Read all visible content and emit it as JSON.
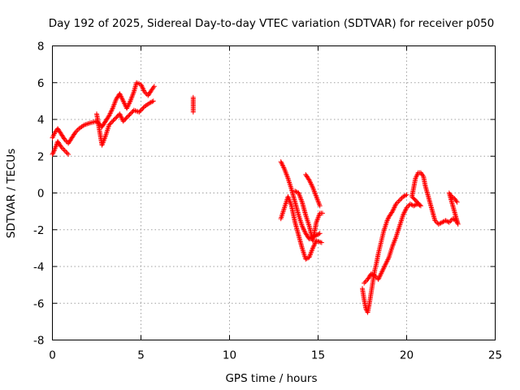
{
  "chart_data": {
    "type": "scatter",
    "title": "Day 192 of 2025, Sidereal Day-to-day VTEC variation (SDTVAR) for receiver p050",
    "xlabel": "GPS time / hours",
    "ylabel": "SDTVAR / TECUs",
    "xlim": [
      0,
      25
    ],
    "ylim": [
      -8,
      8
    ],
    "xticks": [
      0,
      5,
      10,
      15,
      20,
      25
    ],
    "yticks": [
      -8,
      -6,
      -4,
      -2,
      0,
      2,
      4,
      6,
      8
    ],
    "grid": true,
    "marker": "+",
    "marker_color": "#ff0000",
    "series": [
      {
        "name": "SDTVAR",
        "trace": [
          [
            0.0,
            3.0
          ],
          [
            0.15,
            3.3
          ],
          [
            0.3,
            3.5
          ],
          [
            0.5,
            3.2
          ],
          [
            0.7,
            2.9
          ],
          [
            0.9,
            2.7
          ],
          [
            1.1,
            3.0
          ],
          [
            1.3,
            3.3
          ],
          [
            1.5,
            3.5
          ],
          [
            1.8,
            3.7
          ],
          [
            2.1,
            3.8
          ],
          [
            2.5,
            3.9
          ],
          [
            2.8,
            3.6
          ],
          [
            3.0,
            3.9
          ],
          [
            3.2,
            4.2
          ],
          [
            3.4,
            4.6
          ],
          [
            3.6,
            5.1
          ],
          [
            3.8,
            5.4
          ],
          [
            4.0,
            5.0
          ],
          [
            4.2,
            4.6
          ],
          [
            4.4,
            5.0
          ],
          [
            4.6,
            5.5
          ],
          [
            4.75,
            6.0
          ],
          [
            5.0,
            5.9
          ],
          [
            5.2,
            5.5
          ],
          [
            5.4,
            5.3
          ],
          [
            5.6,
            5.6
          ],
          [
            5.75,
            5.8
          ],
          [
            0.0,
            2.1
          ],
          [
            0.1,
            2.3
          ],
          [
            0.3,
            2.8
          ],
          [
            0.5,
            2.5
          ],
          [
            0.7,
            2.3
          ],
          [
            0.9,
            2.1
          ],
          [
            2.5,
            4.3
          ],
          [
            2.8,
            2.6
          ],
          [
            3.0,
            3.1
          ],
          [
            3.2,
            3.7
          ],
          [
            3.5,
            4.0
          ],
          [
            3.8,
            4.3
          ],
          [
            4.0,
            3.9
          ],
          [
            4.3,
            4.2
          ],
          [
            4.6,
            4.5
          ],
          [
            4.9,
            4.4
          ],
          [
            5.2,
            4.7
          ],
          [
            5.5,
            4.9
          ],
          [
            5.7,
            5.0
          ],
          [
            7.95,
            5.2
          ],
          [
            7.95,
            4.7
          ],
          [
            7.95,
            4.4
          ],
          [
            12.9,
            1.7
          ],
          [
            13.1,
            1.3
          ],
          [
            13.3,
            0.8
          ],
          [
            13.5,
            0.2
          ],
          [
            13.7,
            -0.5
          ],
          [
            13.9,
            -1.2
          ],
          [
            14.1,
            -1.8
          ],
          [
            14.3,
            -2.2
          ],
          [
            14.5,
            -2.5
          ],
          [
            14.7,
            -2.4
          ],
          [
            14.9,
            -2.3
          ],
          [
            15.1,
            -2.2
          ],
          [
            12.9,
            -1.4
          ],
          [
            13.1,
            -0.8
          ],
          [
            13.3,
            -0.2
          ],
          [
            13.5,
            -0.7
          ],
          [
            13.7,
            -1.6
          ],
          [
            13.9,
            -2.3
          ],
          [
            14.1,
            -3.0
          ],
          [
            14.3,
            -3.6
          ],
          [
            14.5,
            -3.5
          ],
          [
            14.7,
            -3.0
          ],
          [
            14.9,
            -2.6
          ],
          [
            15.2,
            -2.7
          ],
          [
            13.7,
            0.1
          ],
          [
            13.9,
            0.0
          ],
          [
            14.1,
            -0.5
          ],
          [
            14.3,
            -1.2
          ],
          [
            14.5,
            -1.8
          ],
          [
            14.7,
            -2.6
          ],
          [
            14.9,
            -1.6
          ],
          [
            15.1,
            -1.1
          ],
          [
            15.25,
            -1.1
          ],
          [
            14.3,
            1.0
          ],
          [
            14.5,
            0.7
          ],
          [
            14.7,
            0.3
          ],
          [
            14.9,
            -0.2
          ],
          [
            15.1,
            -0.7
          ],
          [
            17.5,
            -5.2
          ],
          [
            17.6,
            -5.8
          ],
          [
            17.7,
            -6.3
          ],
          [
            17.8,
            -6.5
          ],
          [
            17.9,
            -6.0
          ],
          [
            18.0,
            -5.4
          ],
          [
            18.1,
            -4.8
          ],
          [
            18.2,
            -4.2
          ],
          [
            18.3,
            -3.8
          ],
          [
            18.4,
            -3.3
          ],
          [
            18.5,
            -2.9
          ],
          [
            18.6,
            -2.5
          ],
          [
            18.7,
            -2.1
          ],
          [
            18.8,
            -1.8
          ],
          [
            18.9,
            -1.5
          ],
          [
            19.0,
            -1.3
          ],
          [
            19.2,
            -1.0
          ],
          [
            19.4,
            -0.6
          ],
          [
            19.6,
            -0.4
          ],
          [
            19.8,
            -0.2
          ],
          [
            20.0,
            -0.1
          ],
          [
            17.6,
            -4.9
          ],
          [
            17.8,
            -4.7
          ],
          [
            18.0,
            -4.4
          ],
          [
            18.2,
            -4.5
          ],
          [
            18.4,
            -4.7
          ],
          [
            18.6,
            -4.3
          ],
          [
            18.8,
            -3.9
          ],
          [
            19.0,
            -3.5
          ],
          [
            19.2,
            -2.9
          ],
          [
            19.4,
            -2.4
          ],
          [
            19.6,
            -1.8
          ],
          [
            19.8,
            -1.2
          ],
          [
            20.0,
            -0.8
          ],
          [
            20.2,
            -0.6
          ],
          [
            20.4,
            -0.7
          ],
          [
            20.6,
            -0.6
          ],
          [
            20.8,
            -0.7
          ],
          [
            20.3,
            -0.2
          ],
          [
            20.4,
            0.3
          ],
          [
            20.5,
            0.8
          ],
          [
            20.65,
            1.1
          ],
          [
            20.8,
            1.1
          ],
          [
            20.95,
            0.9
          ],
          [
            21.05,
            0.4
          ],
          [
            21.6,
            -1.5
          ],
          [
            21.8,
            -1.7
          ],
          [
            22.0,
            -1.6
          ],
          [
            22.2,
            -1.5
          ],
          [
            22.4,
            -1.6
          ],
          [
            22.6,
            -1.4
          ],
          [
            22.8,
            -1.5
          ],
          [
            22.9,
            -1.7
          ],
          [
            22.4,
            0.0
          ],
          [
            22.55,
            -0.2
          ],
          [
            22.7,
            -0.3
          ],
          [
            22.85,
            -0.5
          ]
        ]
      }
    ]
  }
}
